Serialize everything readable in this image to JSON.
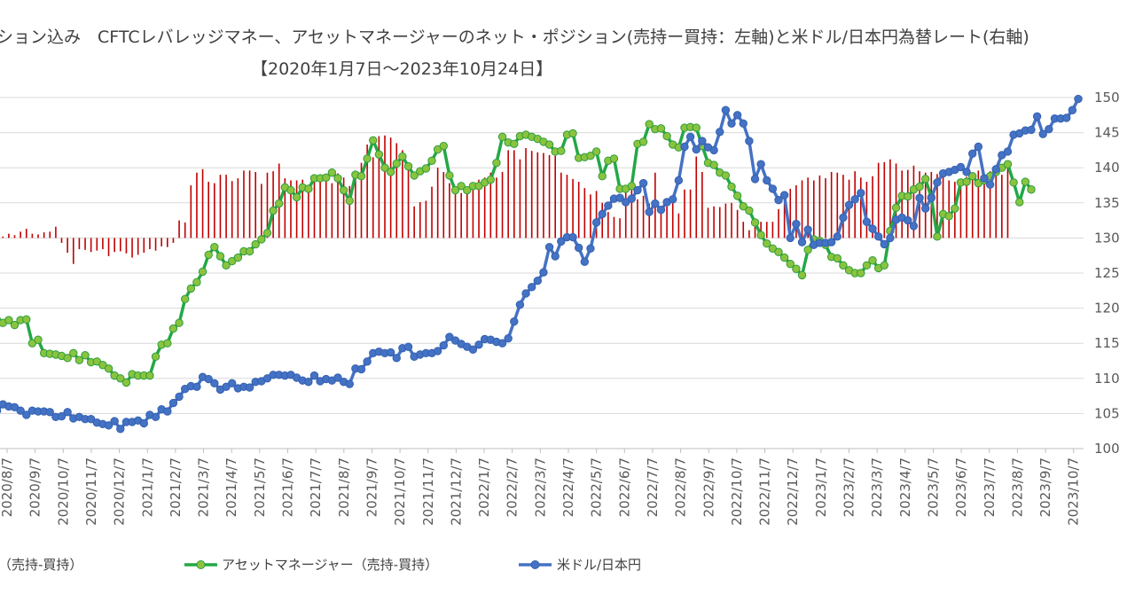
{
  "chart_data": {
    "type": "line",
    "title_line1": "ション込み　CFTCレバレッジマネー、アセットマネージャーのネット・ポジション(売持ー買持：左軸)と米ドル/日本円為替レート(右軸)",
    "title_line2": "【2020年1月7日～2023年10月24日】",
    "right_axis": {
      "ylim": [
        100,
        150
      ],
      "ticks": [
        "100",
        "105",
        "110",
        "115",
        "120",
        "125",
        "130",
        "135",
        "140",
        "145",
        "150"
      ]
    },
    "x_tick_labels": [
      "2020/8/7",
      "2020/9/7",
      "2020/10/7",
      "2020/11/7",
      "2020/12/7",
      "2021/1/7",
      "2021/2/7",
      "2021/3/7",
      "2021/4/7",
      "2021/5/7",
      "2021/6/7",
      "2021/7/7",
      "2021/8/7",
      "2021/9/7",
      "2021/10/7",
      "2021/11/7",
      "2021/12/7",
      "2022/1/7",
      "2022/2/7",
      "2022/3/7",
      "2022/4/7",
      "2022/5/7",
      "2022/6/7",
      "2022/7/7",
      "2022/8/7",
      "2022/9/7",
      "2022/10/7",
      "2022/11/7",
      "2022/12/7",
      "2023/1/7",
      "2023/2/7",
      "2023/3/7",
      "2023/4/7",
      "2023/5/7",
      "2023/6/7",
      "2023/7/7",
      "2023/8/7",
      "2023/9/7",
      "2023/10/7"
    ],
    "legend": [
      {
        "label": "（売持-買持）",
        "color": "#c00000"
      },
      {
        "label": "アセットマネージャー（売持-買持）",
        "color": "#22a846"
      },
      {
        "label": "米ドル/日本円",
        "color": "#4472c4"
      }
    ],
    "series": [
      {
        "name": "米ドル/日本円",
        "color": "#4472c4",
        "values": [
          106.6,
          105.4,
          106.3,
          106.0,
          105.9,
          105.4,
          104.8,
          105.4,
          105.3,
          105.3,
          105.2,
          104.5,
          104.6,
          105.2,
          104.3,
          104.5,
          104.2,
          104.2,
          103.7,
          103.5,
          103.3,
          103.9,
          102.8,
          103.8,
          103.8,
          104.0,
          103.6,
          104.8,
          104.5,
          105.6,
          105.3,
          106.5,
          107.4,
          108.5,
          108.9,
          108.8,
          110.2,
          109.9,
          109.3,
          108.4,
          108.8,
          109.3,
          108.6,
          108.8,
          108.7,
          109.5,
          109.6,
          110.0,
          110.5,
          110.5,
          110.4,
          110.5,
          110.1,
          109.7,
          109.5,
          110.4,
          109.6,
          109.9,
          109.7,
          110.1,
          109.5,
          109.2,
          111.4,
          111.3,
          112.4,
          113.6,
          113.8,
          113.6,
          113.7,
          112.9,
          114.3,
          114.5,
          113.1,
          113.4,
          113.6,
          113.6,
          113.9,
          114.7,
          115.9,
          115.4,
          114.9,
          114.5,
          114.1,
          114.8,
          115.6,
          115.5,
          115.2,
          115.0,
          115.7,
          118.1,
          120.5,
          122.1,
          123.0,
          123.9,
          125.1,
          128.7,
          127.4,
          129.5,
          130.1,
          130.1,
          128.6,
          126.6,
          128.5,
          132.2,
          133.4,
          134.6,
          135.6,
          135.7,
          135.1,
          135.6,
          136.8,
          137.8,
          133.7,
          134.9,
          134.0,
          135.1,
          135.5,
          138.2,
          143.0,
          144.4,
          142.6,
          143.8,
          142.9,
          142.5,
          145.1,
          148.2,
          146.3,
          147.5,
          146.3,
          143.8,
          138.4,
          140.5,
          138.2,
          137.0,
          135.4,
          136.1,
          130.0,
          132.0,
          129.4,
          131.2,
          129.0,
          129.3,
          129.3,
          129.4,
          130.2,
          132.9,
          134.7,
          135.5,
          136.4,
          132.3,
          131.3,
          130.2,
          129.1,
          130.0,
          132.6,
          132.9,
          132.5,
          131.7,
          135.7,
          134.2,
          135.7,
          137.9,
          139.2,
          139.4,
          139.7,
          140.1,
          139.4,
          142.0,
          143.0,
          138.5,
          137.6,
          139.8,
          141.8,
          142.3,
          144.7,
          144.9,
          145.3,
          145.4,
          147.3,
          144.8,
          145.5,
          147.0,
          147.0,
          147.1,
          148.2,
          149.8
        ]
      },
      {
        "name": "アセットマネージャー（売持-買持）",
        "color": "#22a846",
        "values": [
          118.0,
          118.3,
          117.9,
          118.3,
          117.6,
          118.3,
          118.4,
          115.0,
          115.5,
          113.6,
          113.5,
          113.4,
          113.2,
          112.9,
          113.6,
          112.6,
          113.3,
          112.3,
          112.4,
          111.9,
          111.4,
          110.4,
          110.0,
          109.4,
          110.6,
          110.4,
          110.4,
          110.4,
          113.1,
          114.8,
          115.0,
          117.1,
          117.9,
          121.3,
          122.8,
          123.7,
          125.2,
          127.6,
          128.7,
          127.4,
          126.1,
          126.7,
          127.2,
          128.1,
          128.1,
          129.1,
          129.8,
          130.7,
          133.9,
          134.9,
          137.2,
          136.8,
          135.8,
          137.2,
          137.0,
          138.5,
          138.5,
          138.6,
          139.3,
          138.5,
          136.8,
          135.3,
          139.0,
          138.8,
          141.3,
          143.9,
          141.9,
          140.0,
          139.4,
          140.6,
          141.6,
          140.2,
          138.9,
          139.5,
          139.9,
          141.0,
          142.6,
          143.1,
          138.9,
          136.8,
          137.4,
          136.8,
          137.4,
          137.4,
          137.9,
          138.3,
          140.7,
          144.4,
          143.6,
          143.4,
          144.5,
          144.7,
          144.4,
          144.1,
          143.7,
          143.3,
          142.3,
          142.4,
          144.7,
          144.9,
          141.4,
          141.5,
          141.7,
          142.3,
          138.8,
          141.0,
          141.3,
          137.0,
          137.0,
          137.4,
          143.4,
          143.7,
          146.2,
          145.5,
          145.6,
          144.5,
          143.3,
          142.9,
          145.7,
          145.8,
          145.7,
          143.1,
          140.7,
          140.4,
          139.3,
          138.9,
          137.3,
          136.0,
          134.5,
          133.9,
          132.2,
          130.4,
          129.2,
          128.5,
          128.0,
          127.2,
          126.3,
          125.6,
          124.7,
          128.3,
          129.8,
          129.6,
          129.0,
          127.3,
          127.1,
          126.1,
          125.4,
          125.0,
          125.0,
          126.1,
          126.8,
          125.7,
          126.1,
          131.0,
          134.3,
          136.0,
          135.9,
          136.9,
          137.3,
          138.4,
          135.8,
          130.2,
          133.4,
          133.1,
          134.2,
          137.9,
          138.0,
          138.8,
          137.8,
          138.2,
          138.8,
          139.4,
          140.0,
          140.5,
          137.9,
          135.1,
          138.0,
          136.9
        ]
      },
      {
        "name": "（売持-買持）",
        "color": "#c00000",
        "values": [
          130.2,
          130.3,
          130.2,
          130.6,
          130.4,
          130.9,
          131.3,
          130.6,
          130.5,
          130.8,
          130.9,
          131.6,
          129.3,
          127.9,
          126.3,
          128.4,
          128.3,
          128.0,
          128.2,
          128.4,
          127.4,
          128.0,
          128.1,
          127.8,
          127.2,
          127.6,
          127.9,
          128.4,
          128.2,
          128.8,
          128.7,
          129.3,
          132.5,
          132.2,
          137.5,
          139.3,
          139.8,
          138.0,
          137.8,
          139.0,
          139.0,
          138.1,
          138.5,
          139.6,
          139.6,
          139.4,
          137.7,
          139.3,
          139.5,
          140.6,
          138.5,
          138.2,
          138.2,
          138.3,
          137.4,
          138.3,
          138.7,
          138.3,
          137.8,
          139.2,
          138.6,
          137.4,
          138.4,
          140.7,
          143.3,
          141.5,
          144.5,
          144.6,
          144.3,
          143.5,
          142.5,
          140.1,
          134.5,
          135.1,
          135.3,
          137.3,
          140.0,
          139.4,
          137.8,
          137.0,
          136.4,
          136.9,
          137.1,
          138.3,
          138.6,
          139.3,
          138.6,
          139.4,
          142.5,
          142.5,
          141.2,
          142.8,
          142.4,
          142.2,
          142.1,
          141.8,
          141.7,
          139.3,
          139.0,
          138.4,
          138.0,
          137.1,
          136.2,
          136.7,
          135.0,
          133.7,
          133.0,
          132.8,
          136.8,
          138.2,
          135.5,
          136.0,
          134.9,
          139.3,
          134.5,
          134.5,
          135.0,
          133.5,
          136.9,
          136.9,
          141.6,
          139.4,
          134.3,
          134.5,
          134.4,
          134.9,
          135.0,
          134.0,
          132.3,
          131.1,
          131.6,
          132.3,
          132.3,
          132.3,
          134.1,
          134.9,
          137.0,
          137.5,
          138.2,
          138.6,
          138.2,
          138.9,
          138.5,
          139.4,
          139.3,
          139.0,
          138.3,
          139.5,
          138.6,
          138.0,
          138.8,
          140.7,
          140.8,
          141.2,
          140.6,
          139.6,
          139.7,
          140.3,
          139.5,
          139.3,
          139.4,
          139.1,
          138.8,
          138.2,
          138.0,
          137.9,
          138.7,
          138.6,
          139.6,
          138.7,
          139.5,
          138.9,
          139.0,
          140.0
        ]
      }
    ]
  }
}
